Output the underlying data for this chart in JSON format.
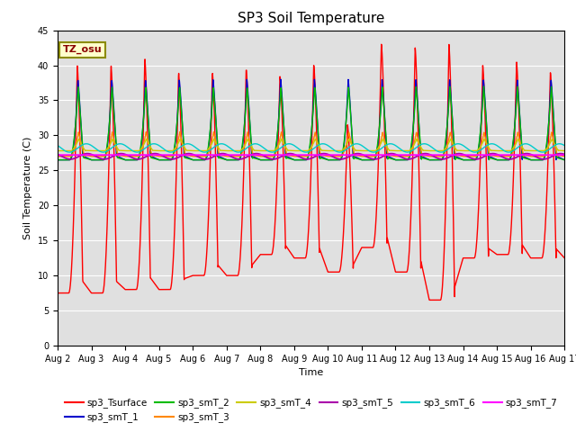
{
  "title": "SP3 Soil Temperature",
  "xlabel": "Time",
  "ylabel": "Soil Temperature (C)",
  "ylim": [
    0,
    45
  ],
  "yticks": [
    0,
    5,
    10,
    15,
    20,
    25,
    30,
    35,
    40,
    45
  ],
  "date_labels": [
    "Aug 2",
    "Aug 3",
    "Aug 4",
    "Aug 5",
    "Aug 6",
    "Aug 7",
    "Aug 8",
    "Aug 9",
    "Aug 10",
    "Aug 11",
    "Aug 12",
    "Aug 13",
    "Aug 14",
    "Aug 15",
    "Aug 16",
    "Aug 17"
  ],
  "annotation_text": "TZ_osu",
  "annotation_color": "#8B0000",
  "annotation_bg": "#FFFFCC",
  "annotation_border": "#8B8B00",
  "bg_color": "#E0E0E0",
  "series_colors": {
    "sp3_Tsurface": "#FF0000",
    "sp3_smT_1": "#0000CC",
    "sp3_smT_2": "#00BB00",
    "sp3_smT_3": "#FF8800",
    "sp3_smT_4": "#CCCC00",
    "sp3_smT_5": "#AA00AA",
    "sp3_smT_6": "#00CCCC",
    "sp3_smT_7": "#FF00FF"
  },
  "n_days": 15,
  "pts_per_day": 144,
  "surface_peak_hour": 0.58,
  "surface_base": 26.5,
  "surface_night_base": 26.0,
  "surface_day_amps": [
    13.5,
    13.5,
    14.5,
    12.5,
    12.5,
    13.0,
    12.0,
    13.5,
    5.0,
    16.5,
    16.0,
    16.5,
    13.5,
    14.0,
    12.5
  ],
  "surface_night_lows": [
    7.5,
    7.5,
    8.0,
    8.0,
    10.0,
    10.0,
    13.0,
    12.5,
    10.5,
    14.0,
    10.5,
    6.5,
    12.5,
    13.0,
    12.5
  ]
}
